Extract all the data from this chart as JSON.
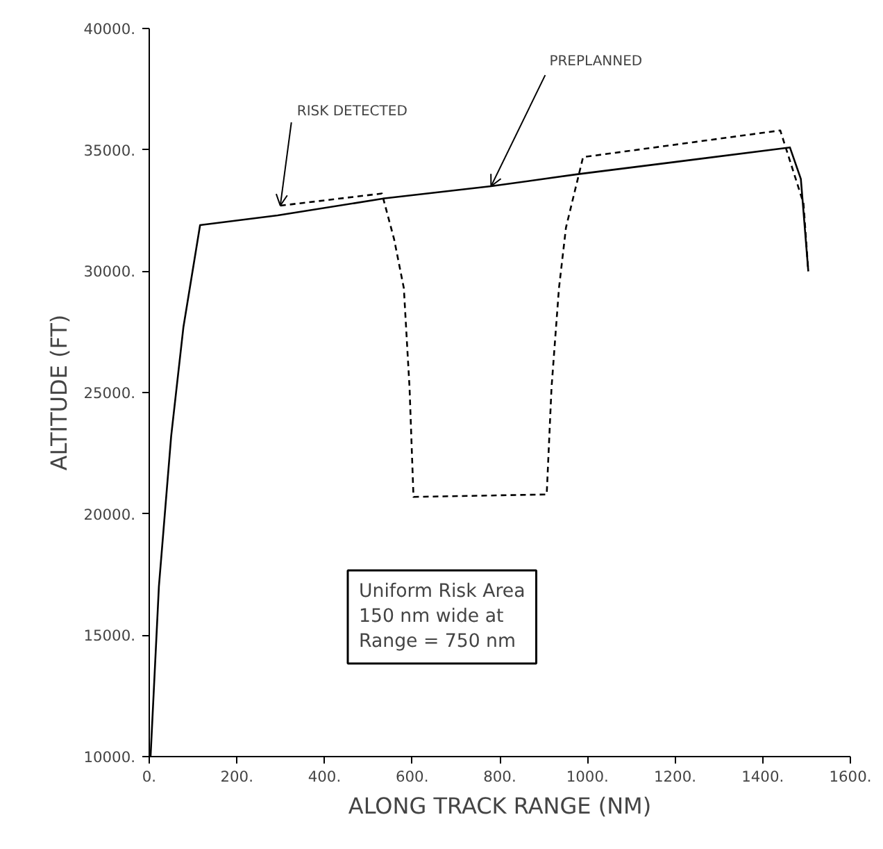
{
  "chart_data": {
    "type": "line",
    "xlabel": "ALONG TRACK RANGE (NM)",
    "ylabel": "ALTITUDE (FT)",
    "xlim": [
      0,
      1600
    ],
    "ylim": [
      10000,
      40000
    ],
    "xticks": [
      {
        "value": 0,
        "label": "0."
      },
      {
        "value": 200,
        "label": "200."
      },
      {
        "value": 400,
        "label": "400."
      },
      {
        "value": 600,
        "label": "600."
      },
      {
        "value": 800,
        "label": "800."
      },
      {
        "value": 1000,
        "label": "1000."
      },
      {
        "value": 1200,
        "label": "1200."
      },
      {
        "value": 1400,
        "label": "1400."
      },
      {
        "value": 1600,
        "label": "1600."
      }
    ],
    "yticks": [
      {
        "value": 10000,
        "label": "10000."
      },
      {
        "value": 15000,
        "label": "15000."
      },
      {
        "value": 20000,
        "label": "20000."
      },
      {
        "value": 25000,
        "label": "25000."
      },
      {
        "value": 30000,
        "label": "30000."
      },
      {
        "value": 35000,
        "label": "35000."
      },
      {
        "value": 40000,
        "label": "40000."
      }
    ],
    "grid": false,
    "series": [
      {
        "color": "#000000",
        "line_style": "solid",
        "x": [
          3,
          22,
          50,
          78,
          116,
          293,
          537,
          780,
          979,
          1200,
          1462,
          1487,
          1504
        ],
        "values": [
          10000,
          17000,
          23200,
          27700,
          31900,
          32300,
          33000,
          33500,
          34000,
          34500,
          35100,
          33800,
          30000
        ]
      },
      {
        "color": "#000000",
        "line_style": "dashed",
        "x": [
          299,
          531,
          559,
          581,
          594,
          603,
          907,
          918,
          935,
          951,
          990,
          1440,
          1493,
          1504
        ],
        "values": [
          32700,
          33200,
          31300,
          29300,
          25200,
          20700,
          20800,
          25200,
          29300,
          31800,
          34700,
          35800,
          32800,
          30000
        ]
      }
    ],
    "annotations": [
      {
        "text": "RISK DETECTED",
        "x": 299,
        "y": 32700
      },
      {
        "text": "PREPLANNED",
        "x": 780,
        "y": 33500
      },
      "Uniform Risk Area\n150 nm wide at\nRange = 750 nm"
    ]
  }
}
